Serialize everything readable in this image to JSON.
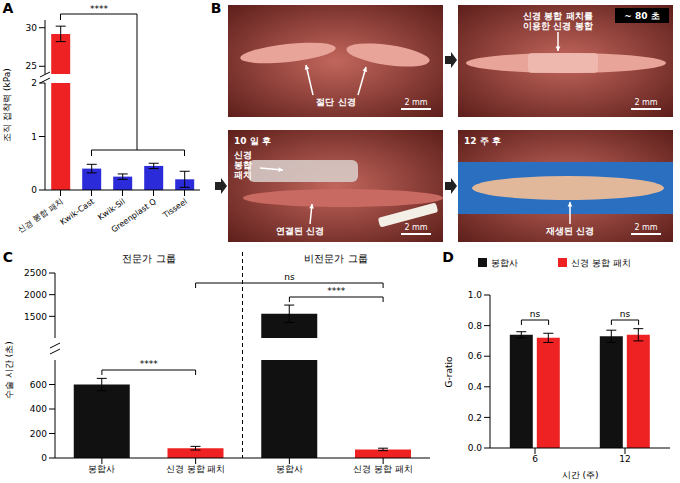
{
  "chart_data": [
    {
      "panel_label": "A",
      "type": "bar",
      "y_label": "조직 접착력 (kPa)",
      "categories": [
        "신경 봉합 패치",
        "Kwik-Cast",
        "Kwik-Sil",
        "Greenplast Q",
        "Tisseel"
      ],
      "values": [
        29.2,
        0.4,
        0.25,
        0.45,
        0.2
      ],
      "errors": [
        1.0,
        0.08,
        0.05,
        0.05,
        0.15
      ],
      "colors": [
        "#ee2222",
        "#2b2bd9",
        "#2b2bd9",
        "#2b2bd9",
        "#2b2bd9"
      ],
      "ylim": [
        0,
        31
      ],
      "yticks": [
        0,
        1,
        2,
        25,
        30
      ],
      "axis_break": [
        2,
        24
      ],
      "annotations": [
        "****"
      ]
    },
    {
      "panel_label": "C",
      "type": "bar",
      "y_label": "수술 시간 (초)",
      "group_labels": [
        "전문가 그룹",
        "비전문가 그룹"
      ],
      "categories": [
        "봉합사",
        "신경 봉합 패치",
        "봉합사",
        "신경 봉합 패치"
      ],
      "values": [
        600,
        80,
        1560,
        70
      ],
      "errors": [
        50,
        15,
        200,
        10
      ],
      "colors": [
        "#111111",
        "#ee2222",
        "#111111",
        "#ee2222"
      ],
      "ylim": [
        0,
        2500
      ],
      "yticks": [
        0,
        200,
        400,
        600,
        1500,
        2000,
        2500
      ],
      "axis_break": [
        800,
        1000
      ],
      "annotations": [
        "****",
        "ns",
        "****"
      ]
    },
    {
      "panel_label": "D",
      "type": "bar",
      "x_label": "시간 (주)",
      "y_label": "G-ratio",
      "categories": [
        "6",
        "12"
      ],
      "series": [
        {
          "name": "봉합사",
          "color": "#111111",
          "values": [
            0.74,
            0.73
          ],
          "errors": [
            0.02,
            0.04
          ]
        },
        {
          "name": "신경 봉합 패치",
          "color": "#ee2222",
          "values": [
            0.72,
            0.74
          ],
          "errors": [
            0.03,
            0.04
          ]
        }
      ],
      "ylim": [
        0,
        1
      ],
      "yticks": [
        {
          "value": 0,
          "label": "0.0"
        },
        {
          "value": 0.2,
          "label": "0.2"
        },
        {
          "value": 0.4,
          "label": "0.4"
        },
        {
          "value": 0.6,
          "label": "0.6"
        },
        {
          "value": 0.8,
          "label": "0.8"
        },
        {
          "value": 1,
          "label": "1.0"
        }
      ],
      "legend": "top",
      "annotations": [
        "ns",
        "ns"
      ]
    }
  ],
  "photos": {
    "panel_label": "B",
    "images": [
      {
        "labels": [
          [
            "절단 신경"
          ]
        ],
        "scale_bar": "2 mm"
      },
      {
        "time": "~ 80 초",
        "labels": [
          [
            "신경 봉합 패치를",
            "이용한 신경 봉합"
          ]
        ],
        "scale_bar": "2 mm"
      },
      {
        "time": "10 일 후",
        "labels": [
          [
            "신경",
            "봉합",
            "패치"
          ],
          [
            "연결된 신경"
          ]
        ],
        "scale_bar": "2 mm"
      },
      {
        "time": "12 주 후",
        "labels": [
          [
            "재생된 신경"
          ]
        ],
        "scale_bar": "2 mm"
      }
    ]
  }
}
